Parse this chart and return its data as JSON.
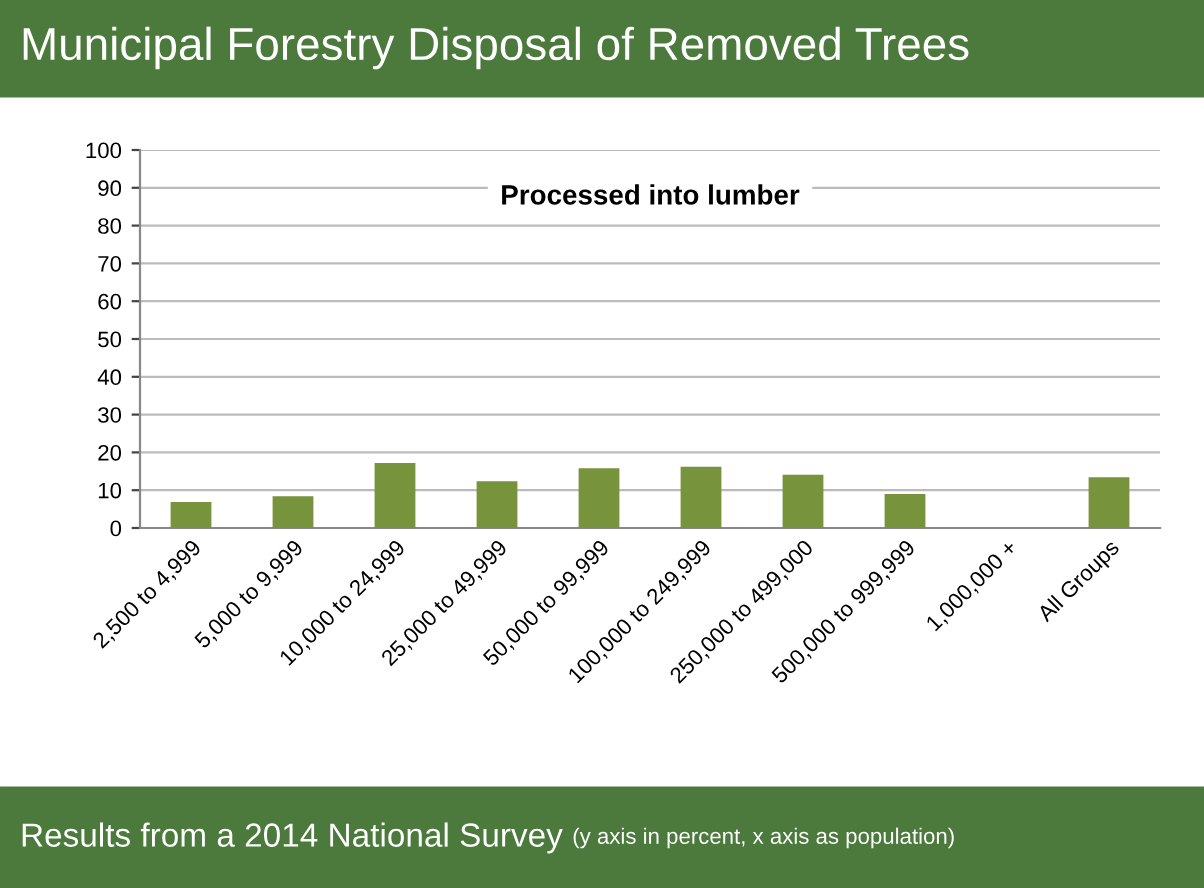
{
  "chart_data": {
    "type": "bar",
    "title": "Municipal Forestry Disposal of Removed Trees",
    "subtitle": "Processed into lumber",
    "categories": [
      "2,500 to 4,999",
      "5,000 to 9,999",
      "10,000 to 24,999",
      "25,000 to 49,999",
      "50,000 to 99,999",
      "100,000 to 249,999",
      "250,000 to 499,000",
      "500,000 to 999,999",
      "1,000,000 +",
      "All Groups"
    ],
    "values": [
      6.9,
      8.4,
      17.2,
      12.4,
      15.8,
      16.2,
      14.1,
      9.0,
      0,
      13.4
    ],
    "color": "#77933c",
    "ylim": [
      0,
      100
    ],
    "yticks": [
      0,
      10,
      20,
      30,
      40,
      50,
      60,
      70,
      80,
      90,
      100
    ],
    "grid": "y",
    "annotations": [
      "Results from a 2014 National Survey",
      "(y axis in percent, x axis as population)"
    ]
  }
}
